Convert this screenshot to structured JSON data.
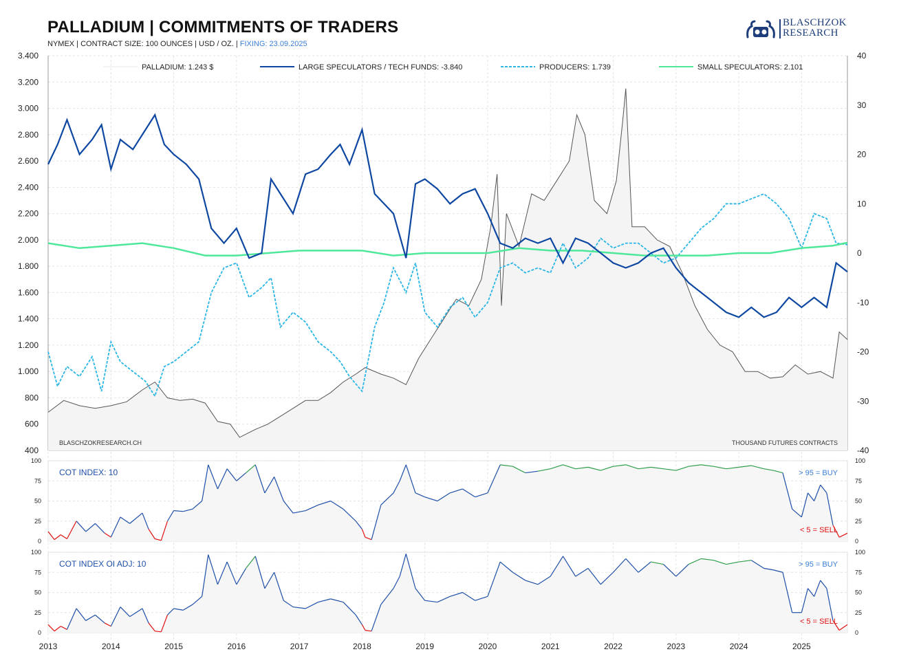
{
  "header": {
    "title": "PALLADIUM  |  COMMITMENTS OF TRADERS",
    "subtitle_main": "NYMEX | CONTRACT SIZE: 100 OUNCES | USD / OZ. | ",
    "subtitle_fixing": "FIXING: 23.09.2025",
    "logo_line1": "BLASCHZOK",
    "logo_line2": "RESEARCH"
  },
  "colors": {
    "price": "#555555",
    "price_fill": "#f4f4f4",
    "large_speculators": "#0d47a1",
    "producers": "#29b6e6",
    "small_speculators": "#4fe89a",
    "index_line": "#1e4fa8",
    "buy": "#2e9e4a",
    "sell": "#e01010",
    "buy_label": "#3b7fd6",
    "grid": "#e3e3e3"
  },
  "chart_data": [
    {
      "type": "line",
      "panel": "main",
      "x_range": [
        2013.0,
        2025.73
      ],
      "x_ticks": [
        "2013",
        "2014",
        "2015",
        "2016",
        "2017",
        "2018",
        "2019",
        "2020",
        "2021",
        "2022",
        "2023",
        "2024",
        "2025"
      ],
      "y_left_ticks": [
        "3.400",
        "3.200",
        "3.000",
        "2.800",
        "2.600",
        "2.400",
        "2.200",
        "2.000",
        "1.800",
        "1.600",
        "1.400",
        "1.200",
        "1.000",
        "800",
        "600",
        "400"
      ],
      "y_left_range": [
        400,
        3400
      ],
      "y_right_ticks": [
        "40",
        "30",
        "20",
        "10",
        "0",
        "-10",
        "-20",
        "-30",
        "-40"
      ],
      "y_right_range": [
        -40,
        40
      ],
      "legend": [
        {
          "key": "price",
          "label": "PALLADIUM: 1.243 $"
        },
        {
          "key": "large_speculators",
          "label": "LARGE SPECULATORS / TECH FUNDS: -3.840"
        },
        {
          "key": "producers",
          "label": "PRODUCERS: 1.739"
        },
        {
          "key": "small_speculators",
          "label": "SMALL SPECULATORS: 2.101"
        }
      ],
      "legend_position": "top",
      "watermark": "BLASCHZOKRESEARCH.CH",
      "unit_note": "THOUSAND  FUTURES CONTRACTS",
      "series": [
        {
          "name": "PALLADIUM",
          "axis": "left",
          "x": [
            2013.0,
            2013.25,
            2013.5,
            2013.75,
            2014.0,
            2014.25,
            2014.5,
            2014.7,
            2014.9,
            2015.1,
            2015.3,
            2015.5,
            2015.7,
            2015.9,
            2016.05,
            2016.3,
            2016.5,
            2016.7,
            2016.9,
            2017.1,
            2017.3,
            2017.5,
            2017.7,
            2017.9,
            2018.05,
            2018.3,
            2018.5,
            2018.7,
            2018.9,
            2019.1,
            2019.3,
            2019.5,
            2019.7,
            2019.9,
            2020.05,
            2020.15,
            2020.22,
            2020.3,
            2020.5,
            2020.7,
            2020.9,
            2021.1,
            2021.3,
            2021.42,
            2021.55,
            2021.7,
            2021.9,
            2022.05,
            2022.15,
            2022.2,
            2022.3,
            2022.5,
            2022.7,
            2022.9,
            2023.1,
            2023.3,
            2023.5,
            2023.7,
            2023.9,
            2024.1,
            2024.3,
            2024.5,
            2024.7,
            2024.9,
            2025.1,
            2025.3,
            2025.5,
            2025.6,
            2025.73
          ],
          "y": [
            690,
            780,
            740,
            720,
            740,
            770,
            860,
            920,
            800,
            780,
            790,
            760,
            620,
            600,
            500,
            560,
            600,
            660,
            720,
            780,
            780,
            840,
            920,
            980,
            1030,
            980,
            950,
            900,
            1100,
            1250,
            1400,
            1550,
            1500,
            1700,
            2100,
            2500,
            1500,
            2200,
            1950,
            2350,
            2300,
            2450,
            2600,
            2950,
            2800,
            2300,
            2200,
            2450,
            2900,
            3150,
            2100,
            2100,
            2000,
            1950,
            1750,
            1500,
            1320,
            1200,
            1150,
            1000,
            1000,
            950,
            960,
            1050,
            980,
            1000,
            950,
            1300,
            1243
          ]
        },
        {
          "name": "LARGE SPECULATORS / TECH FUNDS",
          "axis": "right",
          "x": [
            2013.0,
            2013.15,
            2013.3,
            2013.5,
            2013.7,
            2013.85,
            2014.0,
            2014.15,
            2014.35,
            2014.55,
            2014.7,
            2014.85,
            2015.0,
            2015.2,
            2015.4,
            2015.6,
            2015.8,
            2016.0,
            2016.2,
            2016.4,
            2016.55,
            2016.7,
            2016.9,
            2017.1,
            2017.3,
            2017.5,
            2017.65,
            2017.8,
            2018.0,
            2018.2,
            2018.35,
            2018.5,
            2018.7,
            2018.85,
            2019.0,
            2019.2,
            2019.4,
            2019.6,
            2019.8,
            2020.0,
            2020.2,
            2020.4,
            2020.6,
            2020.8,
            2021.0,
            2021.2,
            2021.4,
            2021.6,
            2021.8,
            2022.0,
            2022.2,
            2022.4,
            2022.6,
            2022.8,
            2023.0,
            2023.2,
            2023.4,
            2023.6,
            2023.8,
            2024.0,
            2024.2,
            2024.4,
            2024.6,
            2024.8,
            2025.0,
            2025.2,
            2025.4,
            2025.55,
            2025.73
          ],
          "y": [
            18,
            22,
            27,
            20,
            23,
            26,
            17,
            23,
            21,
            25,
            28,
            22,
            20,
            18,
            15,
            5,
            2,
            5,
            -1,
            0,
            15,
            12,
            8,
            16,
            17,
            20,
            22,
            18,
            25,
            12,
            10,
            8,
            -1,
            14,
            15,
            13,
            10,
            12,
            13,
            8,
            2,
            1,
            3,
            2,
            3,
            -2,
            3,
            2,
            0,
            -2,
            -3,
            -2,
            0,
            1,
            -3,
            -6,
            -8,
            -10,
            -12,
            -13,
            -11,
            -13,
            -12,
            -9,
            -11,
            -9,
            -11,
            -2,
            -3.8
          ]
        },
        {
          "name": "PRODUCERS",
          "axis": "right",
          "x": [
            2013.0,
            2013.15,
            2013.3,
            2013.5,
            2013.7,
            2013.85,
            2014.0,
            2014.15,
            2014.35,
            2014.55,
            2014.7,
            2014.85,
            2015.0,
            2015.2,
            2015.4,
            2015.6,
            2015.8,
            2016.0,
            2016.2,
            2016.4,
            2016.55,
            2016.7,
            2016.9,
            2017.1,
            2017.3,
            2017.5,
            2017.65,
            2017.8,
            2018.0,
            2018.2,
            2018.35,
            2018.5,
            2018.7,
            2018.85,
            2019.0,
            2019.2,
            2019.4,
            2019.6,
            2019.8,
            2020.0,
            2020.2,
            2020.4,
            2020.6,
            2020.8,
            2021.0,
            2021.2,
            2021.4,
            2021.6,
            2021.8,
            2022.0,
            2022.2,
            2022.4,
            2022.6,
            2022.8,
            2023.0,
            2023.2,
            2023.4,
            2023.6,
            2023.8,
            2024.0,
            2024.2,
            2024.4,
            2024.6,
            2024.8,
            2025.0,
            2025.2,
            2025.4,
            2025.55,
            2025.73
          ],
          "y": [
            -20,
            -27,
            -23,
            -25,
            -21,
            -28,
            -18,
            -22,
            -24,
            -26,
            -29,
            -23,
            -22,
            -20,
            -18,
            -8,
            -3,
            -2,
            -9,
            -7,
            -5,
            -15,
            -12,
            -14,
            -18,
            -20,
            -22,
            -25,
            -28,
            -15,
            -10,
            -3,
            -8,
            -2,
            -12,
            -15,
            -11,
            -9,
            -13,
            -10,
            -3,
            -2,
            -4,
            -3,
            -4,
            2,
            -3,
            -1,
            3,
            1,
            2,
            2,
            0,
            -2,
            -1,
            2,
            5,
            7,
            10,
            10,
            11,
            12,
            10,
            7,
            1,
            8,
            7,
            2,
            1.7
          ]
        },
        {
          "name": "SMALL SPECULATORS",
          "axis": "right",
          "x": [
            2013.0,
            2013.5,
            2014.0,
            2014.5,
            2015.0,
            2015.5,
            2016.0,
            2016.5,
            2017.0,
            2017.5,
            2018.0,
            2018.5,
            2019.0,
            2019.5,
            2020.0,
            2020.5,
            2021.0,
            2021.5,
            2022.0,
            2022.5,
            2023.0,
            2023.5,
            2024.0,
            2024.5,
            2025.0,
            2025.5,
            2025.73
          ],
          "y": [
            2,
            1,
            1.5,
            2,
            1,
            -0.5,
            -0.5,
            0,
            0.5,
            0.5,
            0.5,
            -0.5,
            0,
            0,
            0,
            1,
            0.5,
            0.5,
            0,
            -0.5,
            -0.5,
            -0.5,
            0,
            0,
            1,
            1.5,
            2.1
          ]
        }
      ]
    },
    {
      "type": "line",
      "panel": "cot_index",
      "label": "COT INDEX: 10",
      "buy_label": "> 95 = BUY",
      "sell_label": "< 5 = SELL",
      "y_ticks": [
        "100",
        "75",
        "50",
        "25",
        "0"
      ],
      "y_range": [
        0,
        100
      ],
      "x": [
        2013.0,
        2013.1,
        2013.2,
        2013.3,
        2013.45,
        2013.6,
        2013.75,
        2013.9,
        2014.0,
        2014.15,
        2014.3,
        2014.5,
        2014.6,
        2014.7,
        2014.8,
        2014.9,
        2015.0,
        2015.15,
        2015.3,
        2015.45,
        2015.55,
        2015.7,
        2015.85,
        2016.0,
        2016.15,
        2016.3,
        2016.45,
        2016.6,
        2016.75,
        2016.9,
        2017.1,
        2017.3,
        2017.5,
        2017.7,
        2017.9,
        2018.0,
        2018.05,
        2018.15,
        2018.3,
        2018.5,
        2018.6,
        2018.7,
        2018.85,
        2019.0,
        2019.2,
        2019.4,
        2019.6,
        2019.8,
        2020.0,
        2020.2,
        2020.4,
        2020.6,
        2020.8,
        2021.0,
        2021.2,
        2021.4,
        2021.6,
        2021.8,
        2022.0,
        2022.2,
        2022.4,
        2022.6,
        2022.8,
        2023.0,
        2023.2,
        2023.4,
        2023.6,
        2023.8,
        2024.0,
        2024.2,
        2024.4,
        2024.55,
        2024.7,
        2024.85,
        2025.0,
        2025.1,
        2025.2,
        2025.3,
        2025.4,
        2025.5,
        2025.6,
        2025.73
      ],
      "y": [
        12,
        2,
        8,
        3,
        25,
        12,
        22,
        10,
        5,
        30,
        22,
        35,
        15,
        3,
        1,
        25,
        38,
        37,
        40,
        50,
        95,
        65,
        90,
        75,
        85,
        95,
        60,
        80,
        50,
        35,
        38,
        45,
        50,
        40,
        25,
        15,
        5,
        2,
        45,
        60,
        75,
        95,
        60,
        55,
        50,
        60,
        65,
        55,
        60,
        95,
        93,
        85,
        87,
        90,
        95,
        90,
        92,
        88,
        93,
        95,
        90,
        92,
        90,
        88,
        93,
        95,
        93,
        90,
        92,
        94,
        90,
        88,
        85,
        40,
        30,
        60,
        50,
        70,
        60,
        20,
        5,
        10
      ]
    },
    {
      "type": "line",
      "panel": "cot_index_oi_adj",
      "label": "COT INDEX OI ADJ: 10",
      "buy_label": "> 95 = BUY",
      "sell_label": "< 5 = SELL",
      "y_ticks": [
        "100",
        "75",
        "50",
        "25",
        "0"
      ],
      "y_range": [
        0,
        100
      ],
      "x": [
        2013.0,
        2013.1,
        2013.2,
        2013.3,
        2013.45,
        2013.6,
        2013.75,
        2013.9,
        2014.0,
        2014.15,
        2014.3,
        2014.5,
        2014.6,
        2014.7,
        2014.8,
        2014.9,
        2015.0,
        2015.15,
        2015.3,
        2015.45,
        2015.55,
        2015.7,
        2015.85,
        2016.0,
        2016.15,
        2016.3,
        2016.45,
        2016.6,
        2016.75,
        2016.9,
        2017.1,
        2017.3,
        2017.5,
        2017.7,
        2017.9,
        2018.0,
        2018.05,
        2018.15,
        2018.3,
        2018.5,
        2018.6,
        2018.7,
        2018.85,
        2019.0,
        2019.2,
        2019.4,
        2019.6,
        2019.8,
        2020.0,
        2020.2,
        2020.4,
        2020.6,
        2020.8,
        2021.0,
        2021.2,
        2021.4,
        2021.6,
        2021.8,
        2022.0,
        2022.2,
        2022.4,
        2022.6,
        2022.8,
        2023.0,
        2023.2,
        2023.4,
        2023.6,
        2023.8,
        2024.0,
        2024.2,
        2024.4,
        2024.55,
        2024.7,
        2024.85,
        2025.0,
        2025.1,
        2025.2,
        2025.3,
        2025.4,
        2025.5,
        2025.6,
        2025.73
      ],
      "y": [
        10,
        2,
        8,
        4,
        30,
        15,
        22,
        12,
        8,
        32,
        20,
        30,
        12,
        2,
        1,
        22,
        30,
        28,
        35,
        45,
        97,
        60,
        88,
        60,
        80,
        95,
        55,
        75,
        40,
        32,
        30,
        38,
        42,
        38,
        22,
        10,
        3,
        2,
        35,
        55,
        70,
        98,
        55,
        40,
        38,
        45,
        50,
        40,
        45,
        88,
        75,
        65,
        60,
        70,
        95,
        70,
        80,
        60,
        75,
        92,
        75,
        88,
        85,
        70,
        85,
        92,
        90,
        85,
        88,
        90,
        80,
        78,
        75,
        25,
        25,
        55,
        45,
        65,
        55,
        15,
        3,
        10
      ]
    }
  ]
}
